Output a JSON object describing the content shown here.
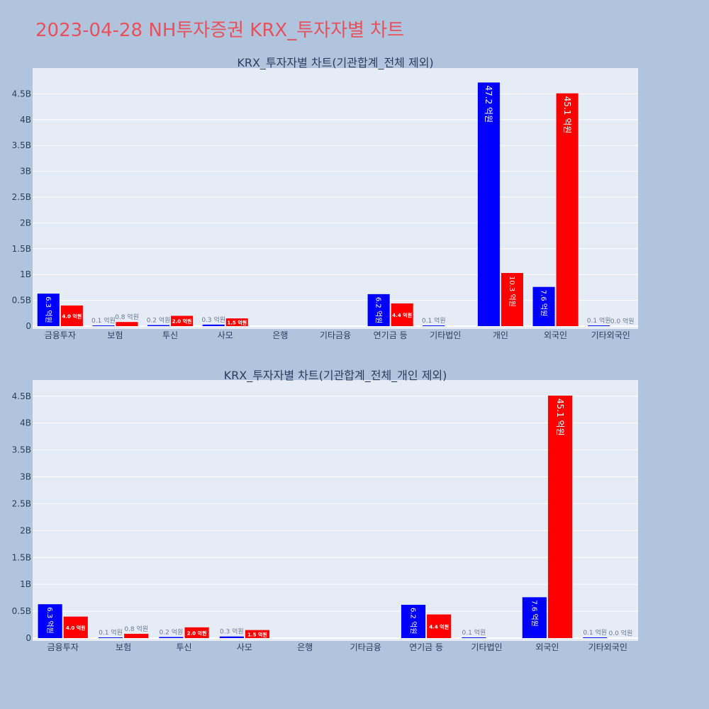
{
  "page": {
    "title": "2023-04-28 NH투자증권 KRX_투자자별 차트"
  },
  "colors": {
    "background": "#b0c4de",
    "plot_bg": "#e5ecf6",
    "buy": "#0000ff",
    "sell": "#ff0000",
    "title": "#e8505b"
  },
  "chart_data": [
    {
      "type": "bar",
      "title": "KRX_투자자별 차트(기관합계_전체 제외)",
      "xlabel": "",
      "ylabel": "",
      "categories": [
        "금융투자",
        "보험",
        "투신",
        "사모",
        "은행",
        "기타금융",
        "연기금 등",
        "기타법인",
        "개인",
        "외국인",
        "기타외국인"
      ],
      "ylim": [
        0,
        5000000000
      ],
      "yticks": [
        0,
        500000000,
        1000000000,
        1500000000,
        2000000000,
        2500000000,
        3000000000,
        3500000000,
        4000000000,
        4500000000
      ],
      "ytick_labels": [
        "0",
        "0.5B",
        "1B",
        "1.5B",
        "2B",
        "2.5B",
        "3B",
        "3.5B",
        "4B",
        "4.5B"
      ],
      "grid": true,
      "series": [
        {
          "color": "#0000ff",
          "values": [
            630000000,
            10000000,
            20000000,
            30000000,
            0,
            0,
            620000000,
            10000000,
            4720000000,
            760000000,
            10000000
          ],
          "labels": [
            "6.3 억원",
            "0.1 억원",
            "0.2 억원",
            "0.3 억원",
            "",
            "",
            "6.2 억원",
            "0.1 억원",
            "47.2 억원",
            "7.6 억원",
            "0.1 억원"
          ]
        },
        {
          "color": "#ff0000",
          "values": [
            400000000,
            80000000,
            200000000,
            150000000,
            0,
            0,
            440000000,
            0,
            1030000000,
            4510000000,
            0
          ],
          "labels": [
            "4.0 억원",
            "0.8 억원",
            "2.0 억원",
            "1.5 억원",
            "",
            "",
            "4.4 억원",
            "",
            "10.3 억원",
            "45.1 억원",
            "0.0 억원"
          ]
        }
      ]
    },
    {
      "type": "bar",
      "title": "KRX_투자자별 차트(기관합계_전체_개인 제외)",
      "xlabel": "",
      "ylabel": "",
      "categories": [
        "금융투자",
        "보험",
        "투신",
        "사모",
        "은행",
        "기타금융",
        "연기금 등",
        "기타법인",
        "외국인",
        "기타외국인"
      ],
      "ylim": [
        0,
        4800000000
      ],
      "yticks": [
        0,
        500000000,
        1000000000,
        1500000000,
        2000000000,
        2500000000,
        3000000000,
        3500000000,
        4000000000,
        4500000000
      ],
      "ytick_labels": [
        "0",
        "0.5B",
        "1B",
        "1.5B",
        "2B",
        "2.5B",
        "3B",
        "3.5B",
        "4B",
        "4.5B"
      ],
      "grid": true,
      "series": [
        {
          "color": "#0000ff",
          "values": [
            630000000,
            10000000,
            20000000,
            30000000,
            0,
            0,
            620000000,
            10000000,
            760000000,
            10000000
          ],
          "labels": [
            "6.3 억원",
            "0.1 억원",
            "0.2 억원",
            "0.3 억원",
            "",
            "",
            "6.2 억원",
            "0.1 억원",
            "7.6 억원",
            "0.1 억원"
          ]
        },
        {
          "color": "#ff0000",
          "values": [
            400000000,
            80000000,
            200000000,
            150000000,
            0,
            0,
            440000000,
            0,
            4510000000,
            0
          ],
          "labels": [
            "4.0 억원",
            "0.8 억원",
            "2.0 억원",
            "1.5 억원",
            "",
            "",
            "4.4 억원",
            "",
            "45.1 억원",
            "0.0 억원"
          ]
        }
      ]
    }
  ]
}
